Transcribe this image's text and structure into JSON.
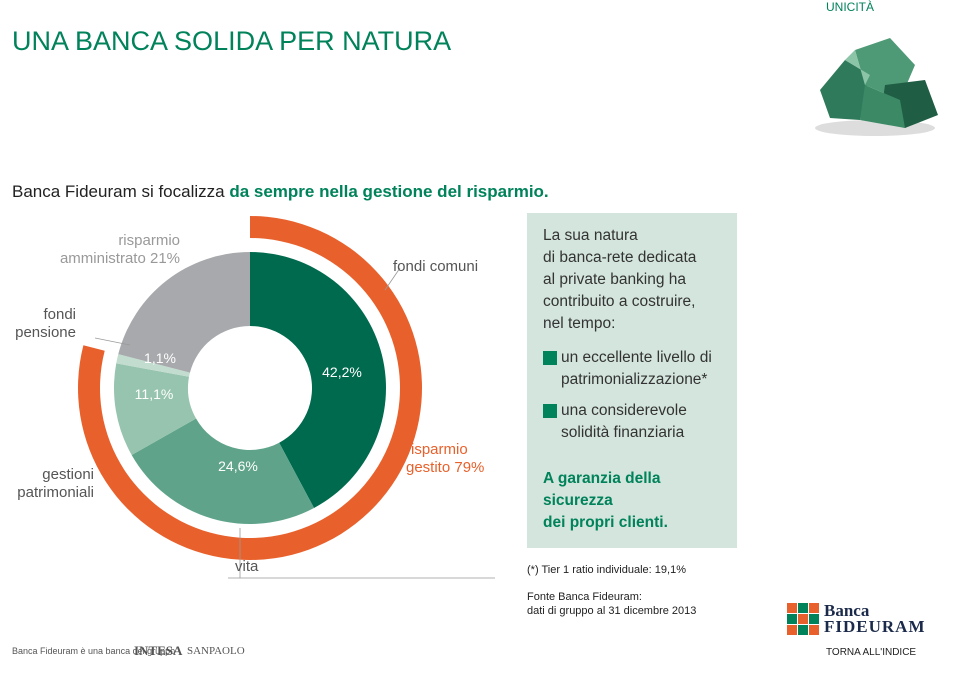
{
  "header": {
    "section": "UNICITÀ",
    "title": "UNA BANCA SOLIDA PER NATURA",
    "subtitle_plain": "Banca Fideuram si focalizza",
    "subtitle_bold": "da sempre nella gestione del risparmio."
  },
  "chart_data": {
    "type": "donut",
    "inner": {
      "categories": [
        "fondi comuni",
        "vita",
        "gestioni patrimoniali",
        "fondi pensione",
        "risparmio amministrato 21%"
      ],
      "values": [
        42.2,
        24.6,
        11.1,
        1.1,
        21
      ],
      "value_labels": [
        "42,2%",
        "24,6%",
        "11,1%",
        "1,1%",
        null
      ],
      "colors": [
        "#006a4e",
        "#5fa48a",
        "#97c4ae",
        "#c2dccf",
        "#a7a9ac"
      ]
    },
    "outer": {
      "label": "risparmio gestito 79%",
      "value": 79,
      "color": "#e8612c"
    }
  },
  "panel": {
    "intro": [
      "La sua natura",
      "di banca-rete dedicata",
      "al private banking ha",
      "contribuito a costruire,",
      "nel tempo:"
    ],
    "bullets": [
      [
        "un eccellente livello di",
        "patrimonializzazione*"
      ],
      [
        "una considerevole",
        "solidità finanziaria"
      ]
    ],
    "closing": [
      "A garanzia della",
      "sicurezza",
      "dei propri clienti."
    ]
  },
  "notes": {
    "tier": "(*) Tier 1 ratio individuale: 19,1%",
    "source": [
      "Fonte Banca Fideuram:",
      "dati di gruppo al 31 dicembre 2013"
    ]
  },
  "footer": {
    "group": "Banca Fideuram è una banca del gruppo",
    "brand1": "INTESA",
    "brand2": "SANPAOLO",
    "logo1": "Banca",
    "logo2": "FIDEURAM",
    "nav": "TORNA ALL'INDICE"
  }
}
